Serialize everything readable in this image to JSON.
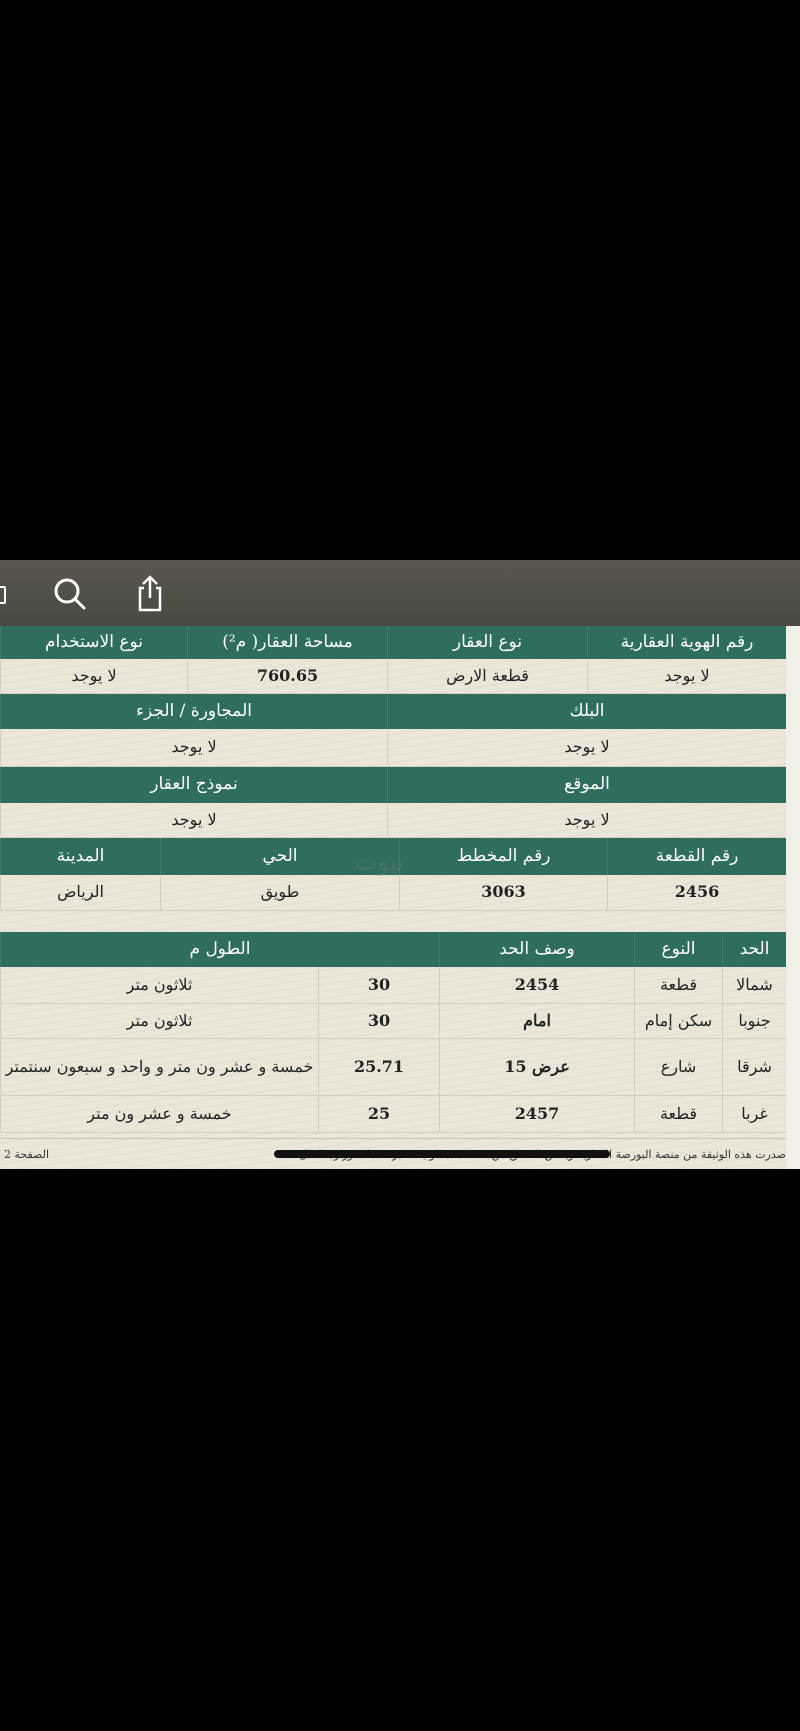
{
  "toolbar": {
    "icons": [
      "search-icon",
      "share-icon"
    ]
  },
  "colors": {
    "header": "#2f6d5f",
    "paper": "#ebe6d8",
    "toolbar": "#4f4b45"
  },
  "table1": {
    "row1_headers": [
      "رقم الهوية العقارية",
      "نوع العقار",
      "مساحة العقار( م²)",
      "نوع الاستخدام"
    ],
    "row1_values": [
      "لا يوجد",
      "قطعة الارض",
      "760.65",
      "لا يوجد"
    ],
    "row2_headers": [
      "البلك",
      "المجاورة / الجزء"
    ],
    "row2_values": [
      "لا يوجد",
      "لا يوجد"
    ],
    "row3_headers": [
      "الموقع",
      "نموذج العقار"
    ],
    "row3_values": [
      "لا يوجد",
      "لا يوجد"
    ],
    "row4_headers": [
      "رقم القطعة",
      "رقم المخطط",
      "الحي",
      "المدينة"
    ],
    "row4_values": [
      "2456",
      "3063",
      "طويق",
      "الرياض"
    ]
  },
  "watermark": "بيوت",
  "boundaries": {
    "headers": [
      "الحد",
      "النوع",
      "وصف الحد",
      "الطول م"
    ],
    "rows": [
      [
        "شمالا",
        "قطعة",
        "2454",
        "30",
        "ثلاثون متر"
      ],
      [
        "جنوبا",
        "سكن إمام",
        "امام",
        "30",
        "ثلاثون متر"
      ],
      [
        "شرقا",
        "شارع",
        "عرض 15",
        "25.71",
        "خمسة و عشر ون متر و واحد و سبعون سنتمتر"
      ],
      [
        "غربا",
        "قطعة",
        "2457",
        "25",
        "خمسة و عشر ون متر"
      ]
    ]
  },
  "footer": {
    "note": "صدرت هذه الوثيقة من منصة البورصة العقارية ويمكن التحقق من صحة هذه الوثيقة عبر خدمات وزارة العدل.",
    "page": "الصفحة 2"
  }
}
